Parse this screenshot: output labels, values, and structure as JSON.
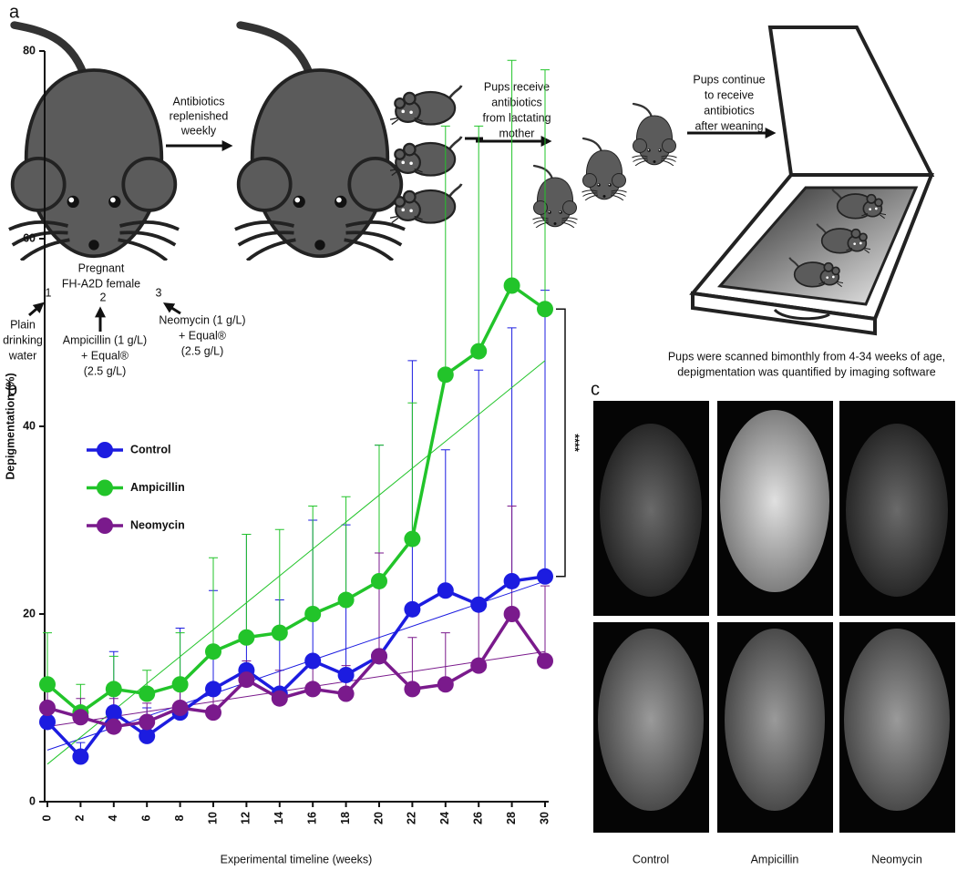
{
  "panel_a": {
    "label": "a",
    "step_1": [
      "Antibiotics",
      "replenished",
      "weekly"
    ],
    "step_2": [
      "Pups receive",
      "antibiotics",
      "from lactating",
      "mother"
    ],
    "step_3": [
      "Pups continue",
      "to receive",
      "antibiotics",
      "after weaning"
    ],
    "mother": [
      "Pregnant",
      "FH-A2D female"
    ],
    "options": [
      {
        "number": "1",
        "lines": [
          "Plain",
          "drinking",
          "water"
        ]
      },
      {
        "number": "2",
        "lines": [
          "Ampicillin (1 g/L)",
          "+ Equal®",
          "(2.5 g/L)"
        ]
      },
      {
        "number": "3",
        "lines": [
          "Neomycin (1 g/L)",
          "+ Equal®",
          "(2.5 g/L)"
        ]
      }
    ],
    "caption": [
      "Pups were scanned bimonthly from 4-34 weeks of age,",
      "depigmentation was quantified by imaging software"
    ]
  },
  "panel_b": {
    "label": "b"
  },
  "chart_data": {
    "type": "line",
    "xlabel": "Experimental timeline (weeks)",
    "ylabel": "Depigmentation (%)",
    "x": [
      0,
      2,
      4,
      6,
      8,
      10,
      12,
      14,
      16,
      18,
      20,
      22,
      24,
      26,
      28,
      30
    ],
    "xlim": [
      0,
      30
    ],
    "xticks": [
      0,
      2,
      4,
      6,
      8,
      10,
      12,
      14,
      16,
      18,
      20,
      22,
      24,
      26,
      28,
      30
    ],
    "ylim": [
      0,
      80
    ],
    "yticks": [
      0,
      20,
      40,
      60,
      80
    ],
    "legend": "upper left",
    "annotation": "****",
    "series": [
      {
        "name": "Control",
        "color": "#1c1ce0",
        "values": [
          8.5,
          4.8,
          9.5,
          7,
          9.5,
          12,
          14,
          11.5,
          15,
          13.5,
          15.5,
          20.5,
          22.5,
          21,
          23.5,
          24
        ],
        "error": [
          2,
          1.5,
          6.5,
          3,
          9,
          10.5,
          14.5,
          10,
          15,
          16,
          22.5,
          26.5,
          15,
          25,
          27,
          30.5
        ],
        "trendline": [
          5.5,
          23.5
        ]
      },
      {
        "name": "Ampicillin",
        "color": "#22c42a",
        "values": [
          12.5,
          9.5,
          12,
          11.5,
          12.5,
          16,
          17.5,
          18,
          20,
          21.5,
          23.5,
          28,
          45.5,
          48,
          55,
          52.5
        ],
        "error": [
          5.5,
          3,
          3.5,
          2.5,
          5.5,
          10,
          11,
          11,
          11.5,
          11,
          14.5,
          14.5,
          26.5,
          24,
          24,
          25.5
        ],
        "trendline": [
          4,
          47
        ]
      },
      {
        "name": "Neomycin",
        "color": "#7a1a8c",
        "values": [
          10,
          9,
          8,
          8.5,
          10,
          9.5,
          13,
          11,
          12,
          11.5,
          15.5,
          12,
          12.5,
          14.5,
          20,
          15
        ],
        "error": [
          2,
          2,
          3,
          2,
          2,
          3,
          2,
          3,
          3,
          3,
          11,
          5.5,
          5.5,
          6,
          11.5,
          8
        ],
        "trendline": [
          8,
          16
        ]
      }
    ]
  },
  "panel_c": {
    "label": "c",
    "groups": [
      "Control",
      "Ampicillin",
      "Neomycin"
    ]
  }
}
